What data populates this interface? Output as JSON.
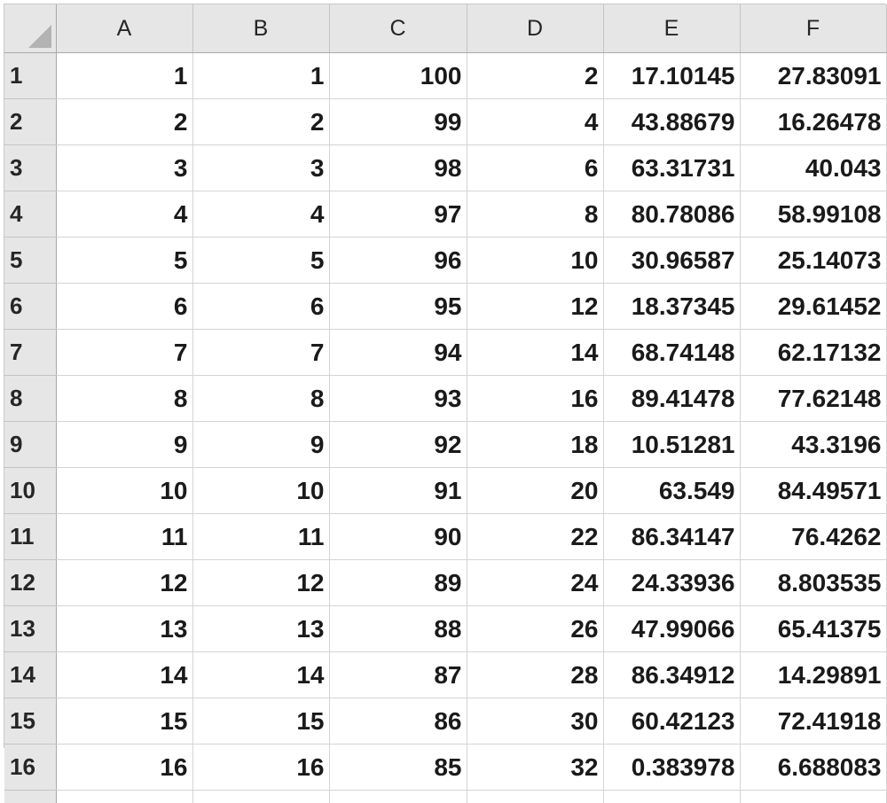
{
  "spreadsheet": {
    "select_all_icon": "select-all-triangle",
    "columns": [
      "A",
      "B",
      "C",
      "D",
      "E",
      "F"
    ],
    "rows": [
      {
        "label": "1",
        "cells": [
          "1",
          "1",
          "100",
          "2",
          "17.10145",
          "27.83091"
        ]
      },
      {
        "label": "2",
        "cells": [
          "2",
          "2",
          "99",
          "4",
          "43.88679",
          "16.26478"
        ]
      },
      {
        "label": "3",
        "cells": [
          "3",
          "3",
          "98",
          "6",
          "63.31731",
          "40.043"
        ]
      },
      {
        "label": "4",
        "cells": [
          "4",
          "4",
          "97",
          "8",
          "80.78086",
          "58.99108"
        ]
      },
      {
        "label": "5",
        "cells": [
          "5",
          "5",
          "96",
          "10",
          "30.96587",
          "25.14073"
        ]
      },
      {
        "label": "6",
        "cells": [
          "6",
          "6",
          "95",
          "12",
          "18.37345",
          "29.61452"
        ]
      },
      {
        "label": "7",
        "cells": [
          "7",
          "7",
          "94",
          "14",
          "68.74148",
          "62.17132"
        ]
      },
      {
        "label": "8",
        "cells": [
          "8",
          "8",
          "93",
          "16",
          "89.41478",
          "77.62148"
        ]
      },
      {
        "label": "9",
        "cells": [
          "9",
          "9",
          "92",
          "18",
          "10.51281",
          "43.3196"
        ]
      },
      {
        "label": "10",
        "cells": [
          "10",
          "10",
          "91",
          "20",
          "63.549",
          "84.49571"
        ]
      },
      {
        "label": "11",
        "cells": [
          "11",
          "11",
          "90",
          "22",
          "86.34147",
          "76.4262"
        ]
      },
      {
        "label": "12",
        "cells": [
          "12",
          "12",
          "89",
          "24",
          "24.33936",
          "8.803535"
        ]
      },
      {
        "label": "13",
        "cells": [
          "13",
          "13",
          "88",
          "26",
          "47.99066",
          "65.41375"
        ]
      },
      {
        "label": "14",
        "cells": [
          "14",
          "14",
          "87",
          "28",
          "86.34912",
          "14.29891"
        ]
      },
      {
        "label": "15",
        "cells": [
          "15",
          "15",
          "86",
          "30",
          "60.42123",
          "72.41918"
        ]
      },
      {
        "label": "16",
        "cells": [
          "16",
          "16",
          "85",
          "32",
          "0.383978",
          "6.688083"
        ]
      }
    ]
  }
}
